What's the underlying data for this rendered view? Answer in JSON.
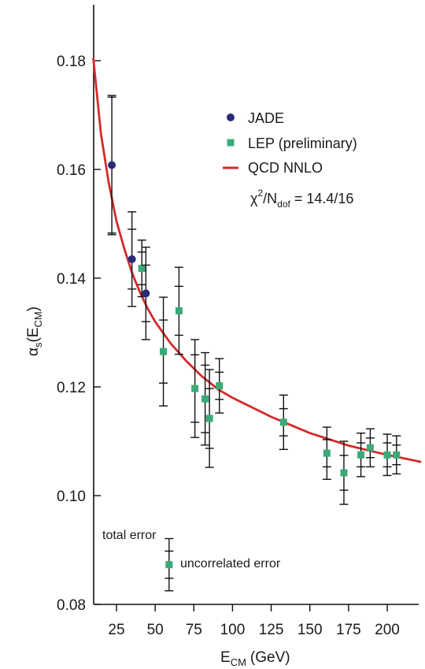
{
  "chart_data": {
    "type": "scatter",
    "xlabel": "E",
    "xlabel_sub": "CM",
    "xlabel_unit": "(GeV)",
    "ylabel": "α",
    "ylabel_sub": "s",
    "ylabel_arg": "(E",
    "ylabel_arg_sub": "CM",
    "ylabel_close": ")",
    "xlim": [
      10,
      222
    ],
    "ylim": [
      0.08,
      0.19
    ],
    "x_ticks": [
      25,
      50,
      75,
      100,
      125,
      150,
      175,
      200
    ],
    "y_ticks": [
      0.08,
      0.1,
      0.12,
      0.14,
      0.16,
      0.18
    ],
    "y_tick_labels": [
      "0.08",
      "0.10",
      "0.12",
      "0.14",
      "0.16",
      "0.18"
    ],
    "grid": false,
    "legend_position": "top-right",
    "series": [
      {
        "name": "JADE",
        "color": "#2a2a7a",
        "marker": "circle",
        "points": [
          {
            "x": 22,
            "y": 0.1608,
            "err_tot": 0.0128,
            "err_unc": 0.0125
          },
          {
            "x": 35,
            "y": 0.1435,
            "err_tot": 0.0087,
            "err_unc": 0.0055
          },
          {
            "x": 44,
            "y": 0.1372,
            "err_tot": 0.0085,
            "err_unc": 0.0052
          }
        ]
      },
      {
        "name": "LEP (preliminary)",
        "color": "#3aaa78",
        "marker": "square",
        "points": [
          {
            "x": 41.4,
            "y": 0.1418,
            "err_tot": 0.0052,
            "err_unc": 0.003
          },
          {
            "x": 55.3,
            "y": 0.1265,
            "err_tot": 0.01,
            "err_unc": 0.0058
          },
          {
            "x": 65.4,
            "y": 0.134,
            "err_tot": 0.008,
            "err_unc": 0.0045
          },
          {
            "x": 75.7,
            "y": 0.1197,
            "err_tot": 0.009,
            "err_unc": 0.0062
          },
          {
            "x": 82.3,
            "y": 0.1178,
            "err_tot": 0.0085,
            "err_unc": 0.0062
          },
          {
            "x": 85.1,
            "y": 0.1142,
            "err_tot": 0.009,
            "err_unc": 0.0055
          },
          {
            "x": 91.5,
            "y": 0.1202,
            "err_tot": 0.005,
            "err_unc": 0.0025
          },
          {
            "x": 133,
            "y": 0.1135,
            "err_tot": 0.005,
            "err_unc": 0.0025
          },
          {
            "x": 161,
            "y": 0.1078,
            "err_tot": 0.0048,
            "err_unc": 0.0025
          },
          {
            "x": 172,
            "y": 0.1042,
            "err_tot": 0.0058,
            "err_unc": 0.0032
          },
          {
            "x": 183,
            "y": 0.1075,
            "err_tot": 0.004,
            "err_unc": 0.0022
          },
          {
            "x": 189,
            "y": 0.1088,
            "err_tot": 0.0035,
            "err_unc": 0.0018
          },
          {
            "x": 200,
            "y": 0.1075,
            "err_tot": 0.0038,
            "err_unc": 0.0022
          },
          {
            "x": 206,
            "y": 0.1075,
            "err_tot": 0.0035,
            "err_unc": 0.0018
          }
        ]
      }
    ],
    "curve": {
      "name": "QCD NNLO",
      "color": "#d42a2a",
      "points": [
        [
          10,
          0.1805
        ],
        [
          15,
          0.1665
        ],
        [
          20,
          0.1575
        ],
        [
          25,
          0.1505
        ],
        [
          30,
          0.1455
        ],
        [
          35,
          0.141
        ],
        [
          40,
          0.1375
        ],
        [
          45,
          0.1345
        ],
        [
          50,
          0.132
        ],
        [
          60,
          0.128
        ],
        [
          70,
          0.1248
        ],
        [
          80,
          0.122
        ],
        [
          91,
          0.1195
        ],
        [
          100,
          0.118
        ],
        [
          125,
          0.1145
        ],
        [
          150,
          0.1115
        ],
        [
          175,
          0.1092
        ],
        [
          200,
          0.1075
        ],
        [
          222,
          0.1062
        ]
      ]
    },
    "fit_label": {
      "chi": "χ",
      "exp": "2",
      "slash_n": "/N",
      "sub": "dof",
      "value": " = 14.4/16"
    },
    "error_key": {
      "total_label": "total error",
      "uncorrelated_label": "uncorrelated error",
      "x": 59,
      "y": 0.0873,
      "err_tot": 0.0048,
      "err_unc": 0.0025,
      "color": "#3aaa78"
    },
    "error_bar_color": "#111111",
    "axis_color": "#111111"
  }
}
